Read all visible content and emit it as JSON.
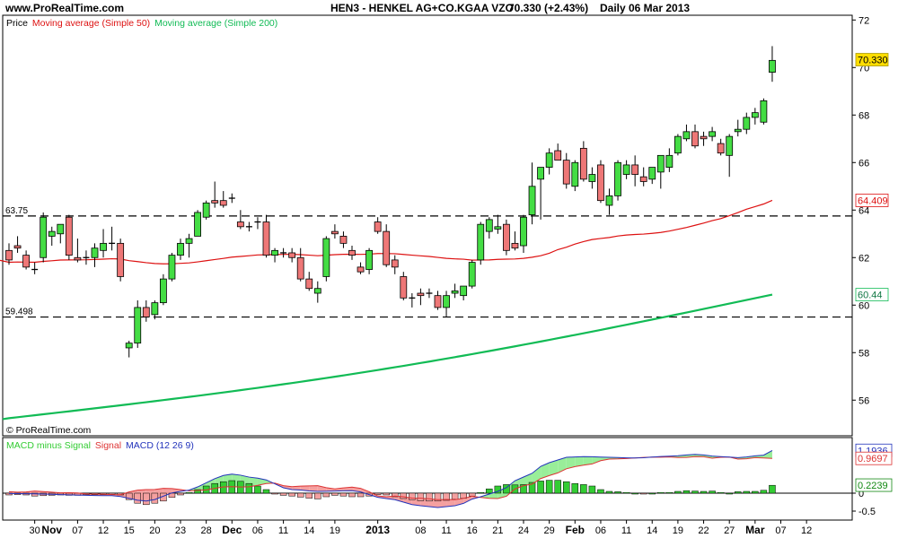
{
  "header": {
    "site": "www.ProRealTime.com",
    "instrument": "HEN3 - HENKEL AG+CO.KGAA VZO",
    "last_quote": "70.330 (+2.43%)",
    "period": "Daily",
    "date": "06 Mar 2013"
  },
  "price_panel": {
    "legend_price": "Price",
    "legend_ma50": "Moving average (Simple 50)",
    "legend_ma200": "Moving average (Simple 200)",
    "watermark": "© ProRealTime.com"
  },
  "macd_panel": {
    "legend_hist": "MACD minus Signal",
    "legend_signal": "Signal",
    "legend_macd": "MACD (12 26 9)"
  },
  "colors": {
    "up": "#44dd44",
    "down": "#ee7777",
    "ma50": "#dd1111",
    "ma200": "#11bb55",
    "macd_line": "#2233bb",
    "signal_line": "#dd3333",
    "hist": "#33cc33",
    "fill_up": "#99ee99",
    "fill_down": "#f4a0a0",
    "last_price_bg": "#ffdd00"
  },
  "chart_data": [
    {
      "type": "candlestick",
      "title": "HEN3 - HENKEL AG+CO.KGAA VZO",
      "ylim": [
        54.5,
        72.2
      ],
      "y_ticks": [
        56,
        58,
        60,
        62,
        64,
        66,
        68,
        70,
        72
      ],
      "x_tick_labels": [
        {
          "i": 3,
          "label": "30"
        },
        {
          "i": 5,
          "label": "Nov"
        },
        {
          "i": 8,
          "label": "07"
        },
        {
          "i": 11,
          "label": "12"
        },
        {
          "i": 14,
          "label": "15"
        },
        {
          "i": 17,
          "label": "20"
        },
        {
          "i": 20,
          "label": "23"
        },
        {
          "i": 23,
          "label": "28"
        },
        {
          "i": 26,
          "label": "Dec"
        },
        {
          "i": 29,
          "label": "06"
        },
        {
          "i": 32,
          "label": "11"
        },
        {
          "i": 35,
          "label": "14"
        },
        {
          "i": 38,
          "label": "19"
        },
        {
          "i": 43,
          "label": "2013"
        },
        {
          "i": 48,
          "label": "08"
        },
        {
          "i": 51,
          "label": "11"
        },
        {
          "i": 54,
          "label": "16"
        },
        {
          "i": 57,
          "label": "21"
        },
        {
          "i": 60,
          "label": "24"
        },
        {
          "i": 63,
          "label": "29"
        },
        {
          "i": 66,
          "label": "Feb"
        },
        {
          "i": 69,
          "label": "06"
        },
        {
          "i": 72,
          "label": "11"
        },
        {
          "i": 75,
          "label": "14"
        },
        {
          "i": 78,
          "label": "19"
        },
        {
          "i": 81,
          "label": "22"
        },
        {
          "i": 84,
          "label": "27"
        },
        {
          "i": 87,
          "label": "Mar"
        },
        {
          "i": 90,
          "label": "07"
        },
        {
          "i": 93,
          "label": "12"
        }
      ],
      "horizontal_levels": [
        {
          "value": 63.75,
          "label": "63.75"
        },
        {
          "value": 59.498,
          "label": "59.498"
        }
      ],
      "candles": [
        [
          62.3,
          62.6,
          61.7,
          61.9
        ],
        [
          62.5,
          62.9,
          62.2,
          62.4
        ],
        [
          62.1,
          62.3,
          61.5,
          61.6
        ],
        [
          61.5,
          61.8,
          61.3,
          61.5
        ],
        [
          62.0,
          63.9,
          61.8,
          63.7
        ],
        [
          62.9,
          63.3,
          62.5,
          63.1
        ],
        [
          63.0,
          63.4,
          62.6,
          63.4
        ],
        [
          63.7,
          63.8,
          61.9,
          62.1
        ],
        [
          62.0,
          62.8,
          61.8,
          61.9
        ],
        [
          62.0,
          62.3,
          61.7,
          62.0
        ],
        [
          62.0,
          62.6,
          61.6,
          62.4
        ],
        [
          62.3,
          63.2,
          62.0,
          62.6
        ],
        [
          62.6,
          63.3,
          62.3,
          62.6
        ],
        [
          62.6,
          62.8,
          61.0,
          61.2
        ],
        [
          58.2,
          58.5,
          57.8,
          58.4
        ],
        [
          58.4,
          60.2,
          58.2,
          59.9
        ],
        [
          59.9,
          60.2,
          59.3,
          59.5
        ],
        [
          59.6,
          60.2,
          59.4,
          60.1
        ],
        [
          60.1,
          61.3,
          60.0,
          61.1
        ],
        [
          61.1,
          62.2,
          61.0,
          62.1
        ],
        [
          62.1,
          62.8,
          61.9,
          62.6
        ],
        [
          62.6,
          63.0,
          62.0,
          62.8
        ],
        [
          62.9,
          64.0,
          62.9,
          63.9
        ],
        [
          63.7,
          64.4,
          63.6,
          64.3
        ],
        [
          64.4,
          65.2,
          64.1,
          64.3
        ],
        [
          64.4,
          64.8,
          64.1,
          64.2
        ],
        [
          64.5,
          64.7,
          64.3,
          64.5
        ],
        [
          63.5,
          64.0,
          63.2,
          63.3
        ],
        [
          63.3,
          63.5,
          63.1,
          63.3
        ],
        [
          63.5,
          63.7,
          63.2,
          63.5
        ],
        [
          63.5,
          63.8,
          62.0,
          62.1
        ],
        [
          62.1,
          62.4,
          61.8,
          62.3
        ],
        [
          62.2,
          62.4,
          62.0,
          62.2
        ],
        [
          62.2,
          62.4,
          61.8,
          62.0
        ],
        [
          62.0,
          62.4,
          61.0,
          61.1
        ],
        [
          61.1,
          61.4,
          60.6,
          60.7
        ],
        [
          60.5,
          61.0,
          60.1,
          60.7
        ],
        [
          61.2,
          62.9,
          61.0,
          62.8
        ],
        [
          63.1,
          63.4,
          62.8,
          63.0
        ],
        [
          62.9,
          63.1,
          62.4,
          62.6
        ],
        [
          62.3,
          62.5,
          61.9,
          62.1
        ],
        [
          61.6,
          61.8,
          61.3,
          61.4
        ],
        [
          61.5,
          62.4,
          61.3,
          62.3
        ],
        [
          63.5,
          63.7,
          63.0,
          63.1
        ],
        [
          63.1,
          63.4,
          61.6,
          61.7
        ],
        [
          61.9,
          62.1,
          61.3,
          61.6
        ],
        [
          61.2,
          61.4,
          60.2,
          60.3
        ],
        [
          60.3,
          60.5,
          59.9,
          60.3
        ],
        [
          60.5,
          60.7,
          60.0,
          60.4
        ],
        [
          60.5,
          60.7,
          60.3,
          60.5
        ],
        [
          60.4,
          60.6,
          59.8,
          59.9
        ],
        [
          59.9,
          60.6,
          59.5,
          60.4
        ],
        [
          60.5,
          60.9,
          60.3,
          60.6
        ],
        [
          60.4,
          60.8,
          60.2,
          60.8
        ],
        [
          60.8,
          61.9,
          60.7,
          61.8
        ],
        [
          61.9,
          63.5,
          61.7,
          63.4
        ],
        [
          63.1,
          63.7,
          62.8,
          63.6
        ],
        [
          63.2,
          63.8,
          63.0,
          63.3
        ],
        [
          63.4,
          63.6,
          62.1,
          62.3
        ],
        [
          62.6,
          63.1,
          62.3,
          62.4
        ],
        [
          62.5,
          63.8,
          62.2,
          63.7
        ],
        [
          63.8,
          66.0,
          63.4,
          65.0
        ],
        [
          65.3,
          65.8,
          63.6,
          65.8
        ],
        [
          65.8,
          66.6,
          65.5,
          66.4
        ],
        [
          66.5,
          66.8,
          66.1,
          66.1
        ],
        [
          66.1,
          66.4,
          64.9,
          65.1
        ],
        [
          65.0,
          66.1,
          64.8,
          66.0
        ],
        [
          66.6,
          66.9,
          65.2,
          65.3
        ],
        [
          65.2,
          65.8,
          64.9,
          65.5
        ],
        [
          65.9,
          66.1,
          64.3,
          64.4
        ],
        [
          64.2,
          64.9,
          63.8,
          64.6
        ],
        [
          64.6,
          66.1,
          64.4,
          66.0
        ],
        [
          65.5,
          66.1,
          65.3,
          65.9
        ],
        [
          65.9,
          66.3,
          65.0,
          65.5
        ],
        [
          65.4,
          65.8,
          65.0,
          65.2
        ],
        [
          65.3,
          65.8,
          65.1,
          65.8
        ],
        [
          65.6,
          66.2,
          64.9,
          66.3
        ],
        [
          65.8,
          66.6,
          65.6,
          66.3
        ],
        [
          66.4,
          67.2,
          66.3,
          67.1
        ],
        [
          67.0,
          67.6,
          66.9,
          67.3
        ],
        [
          67.3,
          67.6,
          66.6,
          66.7
        ],
        [
          67.1,
          67.3,
          66.7,
          67.0
        ],
        [
          67.1,
          67.5,
          66.9,
          67.3
        ],
        [
          66.8,
          67.0,
          66.3,
          66.4
        ],
        [
          66.3,
          67.2,
          65.4,
          67.1
        ],
        [
          67.3,
          67.8,
          67.1,
          67.4
        ],
        [
          67.4,
          68.1,
          67.2,
          67.9
        ],
        [
          67.9,
          68.3,
          67.6,
          68.1
        ],
        [
          67.7,
          68.7,
          67.6,
          68.6
        ],
        [
          69.8,
          70.9,
          69.4,
          70.3
        ]
      ],
      "series": [
        {
          "name": "Moving average (Simple 50)",
          "last_value": 64.409
        },
        {
          "name": "Moving average (Simple 200)",
          "last_value": 60.44
        }
      ],
      "last_price": 70.33
    },
    {
      "type": "macd",
      "ylim": [
        -0.75,
        1.55
      ],
      "y_ticks": [
        {
          "value": 0,
          "label": "0"
        },
        {
          "value": -0.5,
          "label": "-0.5"
        }
      ],
      "series": [
        {
          "name": "MACD (12 26 9)",
          "last_value": 1.1936
        },
        {
          "name": "Signal",
          "last_value": 0.9697
        },
        {
          "name": "MACD minus Signal",
          "last_value": 0.2239
        }
      ],
      "hist_values": [
        -0.05,
        -0.04,
        -0.05,
        -0.08,
        -0.07,
        -0.06,
        -0.05,
        -0.06,
        -0.06,
        -0.04,
        -0.04,
        -0.04,
        -0.03,
        -0.05,
        -0.18,
        -0.28,
        -0.32,
        -0.28,
        -0.22,
        -0.12,
        -0.05,
        0.02,
        0.1,
        0.2,
        0.27,
        0.32,
        0.35,
        0.33,
        0.27,
        0.2,
        0.1,
        -0.02,
        -0.06,
        -0.08,
        -0.11,
        -0.14,
        -0.16,
        -0.1,
        -0.06,
        -0.08,
        -0.1,
        -0.1,
        -0.08,
        -0.04,
        -0.05,
        -0.1,
        -0.15,
        -0.18,
        -0.21,
        -0.22,
        -0.22,
        -0.2,
        -0.17,
        -0.14,
        -0.08,
        0.02,
        0.12,
        0.2,
        0.24,
        0.23,
        0.24,
        0.3,
        0.34,
        0.36,
        0.36,
        0.32,
        0.27,
        0.24,
        0.2,
        0.1,
        0.05,
        0.04,
        0.02,
        0.0,
        -0.01,
        0.0,
        0.02,
        0.02,
        0.05,
        0.07,
        0.06,
        0.05,
        0.06,
        0.02,
        0.0,
        0.04,
        0.05,
        0.05,
        0.08,
        0.22
      ],
      "macd_anchors": [
        [
          0,
          -0.01
        ],
        [
          12,
          -0.07
        ],
        [
          16,
          -0.22
        ],
        [
          20,
          0.05
        ],
        [
          26,
          0.53
        ],
        [
          29,
          0.42
        ],
        [
          33,
          0.1
        ],
        [
          36,
          0.05
        ],
        [
          40,
          0.07
        ],
        [
          44,
          -0.15
        ],
        [
          48,
          -0.35
        ],
        [
          50,
          -0.4
        ],
        [
          52,
          -0.35
        ],
        [
          55,
          -0.1
        ],
        [
          57,
          0.05
        ],
        [
          60,
          0.45
        ],
        [
          63,
          0.85
        ],
        [
          65,
          1.0
        ],
        [
          67,
          1.02
        ],
        [
          70,
          1.0
        ],
        [
          73,
          0.98
        ],
        [
          77,
          1.03
        ],
        [
          80,
          1.08
        ],
        [
          83,
          1.02
        ],
        [
          85,
          0.99
        ],
        [
          88,
          1.06
        ],
        [
          89,
          1.19
        ]
      ]
    }
  ]
}
